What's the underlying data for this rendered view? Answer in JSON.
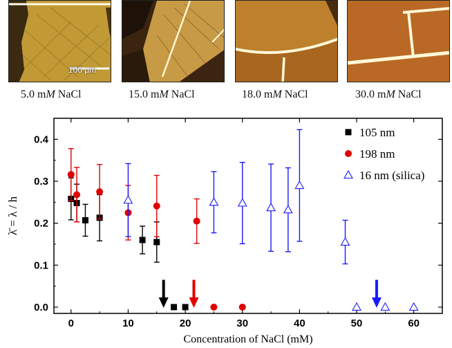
{
  "panels": [
    {
      "caption_prefix": "5.0 m",
      "caption_unit": "M",
      "caption_suffix": " NaCl",
      "scalebar": "100 µm"
    },
    {
      "caption_prefix": "15.0 m",
      "caption_unit": "M",
      "caption_suffix": " NaCl"
    },
    {
      "caption_prefix": "18.0 m",
      "caption_unit": "M",
      "caption_suffix": " NaCl"
    },
    {
      "caption_prefix": "30.0 m",
      "caption_unit": "M",
      "caption_suffix": " NaCl"
    }
  ],
  "colors": {
    "black": "#000000",
    "red": "#e00000",
    "blue": "#1a1aff"
  },
  "chart_data": {
    "type": "scatter",
    "xlabel": "Concentration of NaCl (mM)",
    "ylabel": "λ̄ = λ / h",
    "xlim": [
      -3,
      65
    ],
    "ylim": [
      -0.015,
      0.45
    ],
    "xticks": [
      0,
      10,
      20,
      30,
      40,
      50,
      60
    ],
    "yticks": [
      0.0,
      0.1,
      0.2,
      0.3,
      0.4
    ],
    "legend_position": "top-right",
    "series": [
      {
        "name": "105 nm",
        "marker": "square",
        "color": "#000000",
        "points": [
          [
            0,
            0.258,
            0.05
          ],
          [
            1,
            0.248,
            0.045
          ],
          [
            2.5,
            0.207,
            0.038
          ],
          [
            5,
            0.213,
            0.055
          ],
          [
            12.5,
            0.16,
            0.033
          ],
          [
            15,
            0.155,
            0.048
          ],
          [
            18,
            0.0,
            0
          ],
          [
            20,
            0.0,
            0
          ]
        ]
      },
      {
        "name": "198 nm",
        "marker": "circle",
        "color": "#e00000",
        "points": [
          [
            0,
            0.316,
            0.062
          ],
          [
            1,
            0.268,
            0.065
          ],
          [
            5,
            0.275,
            0.065
          ],
          [
            10,
            0.225,
            0.065
          ],
          [
            15,
            0.241,
            0.073
          ],
          [
            22,
            0.205,
            0.053
          ],
          [
            25,
            0.0,
            0
          ],
          [
            30,
            0.0,
            0
          ]
        ]
      },
      {
        "name": "16 nm (silica)",
        "marker": "triangle",
        "color": "#1a1aff",
        "points": [
          [
            10,
            0.255,
            0.087
          ],
          [
            25,
            0.25,
            0.073
          ],
          [
            30,
            0.248,
            0.097
          ],
          [
            35,
            0.237,
            0.104
          ],
          [
            38,
            0.232,
            0.1
          ],
          [
            40,
            0.29,
            0.133
          ],
          [
            48,
            0.155,
            0.052
          ],
          [
            50,
            0.0,
            0
          ],
          [
            55,
            0.0,
            0
          ],
          [
            60,
            0.0,
            0
          ]
        ]
      }
    ],
    "arrows": [
      {
        "x": 16.2,
        "color": "#000000"
      },
      {
        "x": 21.5,
        "color": "#e00000"
      },
      {
        "x": 53.5,
        "color": "#1a1aff"
      }
    ]
  }
}
